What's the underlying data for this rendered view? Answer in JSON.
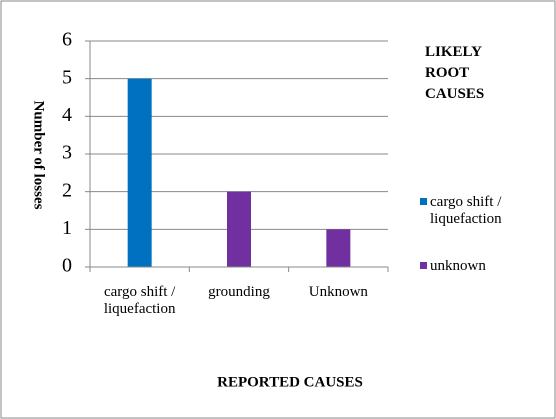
{
  "chart_data": {
    "type": "bar",
    "y_label": "Number of losses",
    "x_label": "REPORTED CAUSES",
    "legend_title": "LIKELY ROOT CAUSES",
    "categories": [
      "cargo shift / liquefaction",
      "grounding",
      "Unknown"
    ],
    "series": [
      {
        "name": "cargo shift / liquefaction",
        "color": "#0070c0",
        "values": [
          5,
          null,
          null
        ]
      },
      {
        "name": "unknown",
        "color": "#7030a0",
        "values": [
          null,
          2,
          1
        ]
      }
    ],
    "ylim": [
      0,
      6
    ],
    "yticks": [
      0,
      1,
      2,
      3,
      4,
      5,
      6
    ],
    "grid": true,
    "legend": "right"
  }
}
